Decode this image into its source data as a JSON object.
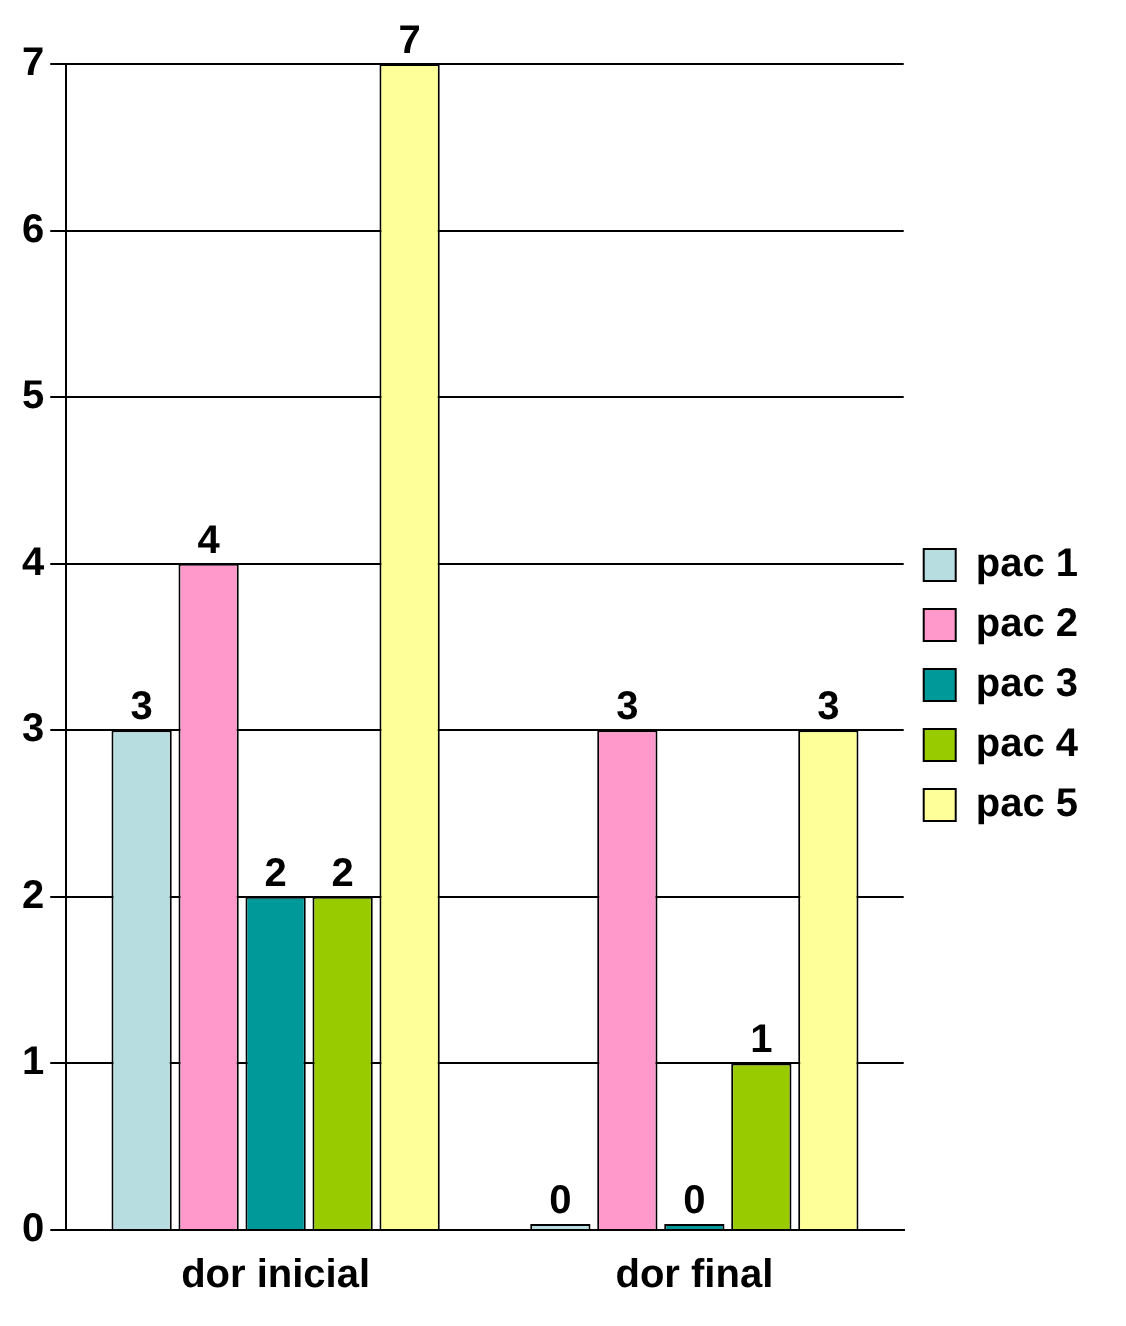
{
  "chart_data": {
    "type": "bar",
    "categories": [
      "dor inicial",
      "dor final"
    ],
    "series": [
      {
        "name": "pac 1",
        "color": "#b7dde0",
        "values": [
          3,
          0
        ]
      },
      {
        "name": "pac 2",
        "color": "#ff99cc",
        "values": [
          4,
          3
        ]
      },
      {
        "name": "pac 3",
        "color": "#009999",
        "values": [
          2,
          0
        ]
      },
      {
        "name": "pac 4",
        "color": "#99cc00",
        "values": [
          2,
          1
        ]
      },
      {
        "name": "pac 5",
        "color": "#ffff99",
        "values": [
          7,
          3
        ]
      }
    ],
    "ylim": [
      0,
      7
    ],
    "yticks": [
      0,
      1,
      2,
      3,
      4,
      5,
      6,
      7
    ],
    "grid": "y",
    "legend": "right",
    "data_labels": true
  }
}
